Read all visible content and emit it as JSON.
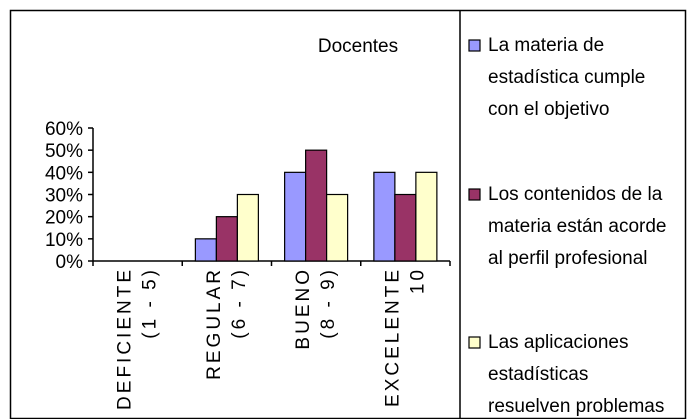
{
  "chart_data": {
    "type": "bar",
    "title": "Docentes",
    "xlabel": "",
    "ylabel": "",
    "ylim": [
      0,
      0.6
    ],
    "y_ticks": [
      "0%",
      "10%",
      "20%",
      "30%",
      "40%",
      "50%",
      "60%"
    ],
    "grid": false,
    "legend_position": "right",
    "categories": [
      {
        "line1": "DEFICIENTE",
        "line2": "(1 - 5)"
      },
      {
        "line1": "REGULAR",
        "line2": "(6 - 7)"
      },
      {
        "line1": "BUENO",
        "line2": "(8 - 9)"
      },
      {
        "line1": "EXCELENTE",
        "line2": "10"
      }
    ],
    "series": [
      {
        "name": "La materia de estadística cumple con el objetivo",
        "legend_lines": [
          "La materia de",
          "estadística cumple",
          "con el objetivo"
        ],
        "color": "#9999ff",
        "values": [
          0,
          0.1,
          0.4,
          0.4
        ]
      },
      {
        "name": "Los contenidos de la materia están acorde al perfil profesional",
        "legend_lines": [
          "Los contenidos de la",
          "materia están acorde",
          "al perfil profesional"
        ],
        "color": "#993366",
        "values": [
          0,
          0.2,
          0.5,
          0.3
        ]
      },
      {
        "name": "Las aplicaciones estadísticas resuelven problemas",
        "legend_lines": [
          "Las aplicaciones",
          "estadísticas",
          "resuelven problemas"
        ],
        "color": "#ffffcc",
        "values": [
          0,
          0.3,
          0.3,
          0.4
        ]
      }
    ]
  }
}
